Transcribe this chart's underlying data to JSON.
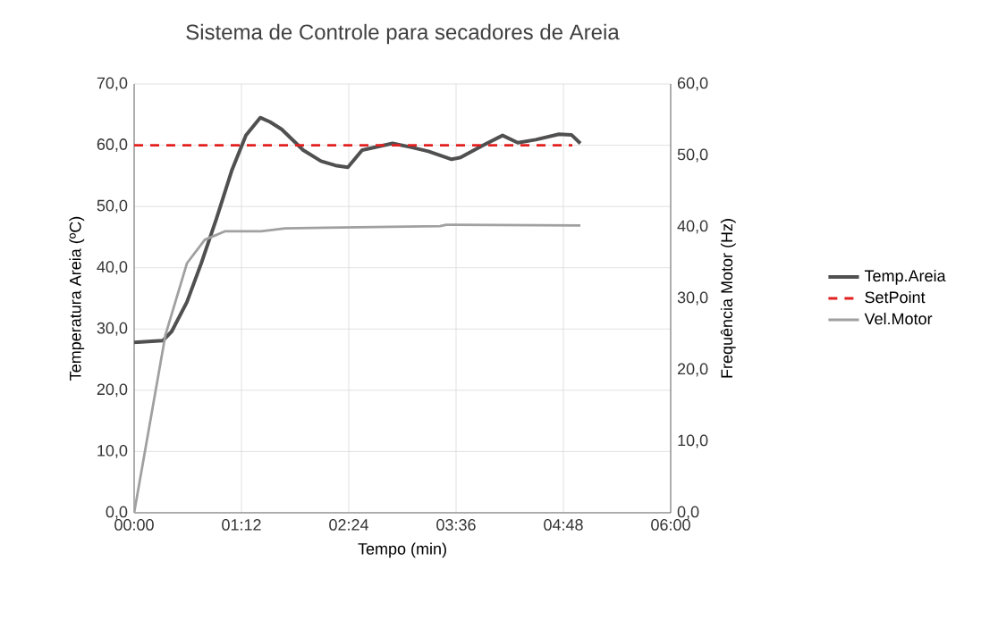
{
  "chart_data": {
    "type": "line",
    "title": "Sistema de Controle para secadores de Areia",
    "xlabel": "Tempo (min)",
    "ylabel": "Temperatura Areia (ºC)",
    "y2label": "Frequência Motor (Hz)",
    "xlim": [
      0,
      6
    ],
    "xticks": [
      {
        "value": 0,
        "label": "00:00"
      },
      {
        "value": 1.2,
        "label": "01:12"
      },
      {
        "value": 2.4,
        "label": "02:24"
      },
      {
        "value": 3.6,
        "label": "03:36"
      },
      {
        "value": 4.8,
        "label": "04:48"
      },
      {
        "value": 6,
        "label": "06:00"
      }
    ],
    "ylim": [
      0,
      70
    ],
    "yticks": [
      {
        "value": 0,
        "label": "0,0"
      },
      {
        "value": 10,
        "label": "10,0"
      },
      {
        "value": 20,
        "label": "20,0"
      },
      {
        "value": 30,
        "label": "30,0"
      },
      {
        "value": 40,
        "label": "40,0"
      },
      {
        "value": 50,
        "label": "50,0"
      },
      {
        "value": 60,
        "label": "60,0"
      },
      {
        "value": 70,
        "label": "70,0"
      }
    ],
    "y2lim": [
      0,
      60
    ],
    "y2ticks": [
      {
        "value": 0,
        "label": "0,0"
      },
      {
        "value": 10,
        "label": "10,0"
      },
      {
        "value": 20,
        "label": "20,0"
      },
      {
        "value": 30,
        "label": "30,0"
      },
      {
        "value": 40,
        "label": "40,0"
      },
      {
        "value": 50,
        "label": "50,0"
      },
      {
        "value": 60,
        "label": "60,0"
      }
    ],
    "grid": true,
    "legend": "right",
    "marker": "none",
    "series": [
      {
        "name": "Temp.Areia",
        "color": "#505050",
        "line_style": "solid",
        "x": [
          0,
          0.32,
          0.42,
          0.59,
          0.75,
          0.92,
          1.09,
          1.25,
          1.41,
          1.52,
          1.65,
          1.89,
          2.09,
          2.25,
          2.39,
          2.55,
          2.89,
          3.09,
          3.29,
          3.55,
          3.65,
          3.89,
          4.12,
          4.29,
          4.49,
          4.75,
          4.89,
          4.99
        ],
        "values": [
          27.8,
          28.1,
          29.6,
          34.4,
          40.7,
          48.0,
          55.8,
          61.6,
          64.5,
          63.8,
          62.6,
          59.2,
          57.4,
          56.7,
          56.4,
          59.2,
          60.3,
          59.7,
          59.0,
          57.7,
          58.0,
          59.9,
          61.6,
          60.4,
          60.9,
          61.8,
          61.7,
          60.3
        ]
      },
      {
        "name": "SetPoint",
        "color": "#e32020",
        "line_style": "dashed",
        "x": [
          0,
          4.9
        ],
        "values": [
          60,
          60
        ]
      },
      {
        "name": "Vel.Motor",
        "color": "#a0a0a0",
        "line_style": "solid",
        "axis": "y2",
        "x": [
          0,
          0.35,
          0.59,
          0.79,
          1.02,
          1.42,
          1.69,
          2.15,
          3.42,
          3.49,
          4.99
        ],
        "values": [
          0,
          24.9,
          34.9,
          38.2,
          39.4,
          39.4,
          39.8,
          39.9,
          40.1,
          40.3,
          40.2
        ]
      }
    ]
  }
}
